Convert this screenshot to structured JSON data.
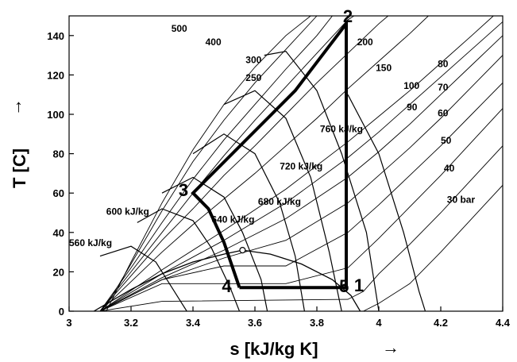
{
  "chart_data": {
    "type": "line",
    "title": "",
    "xlabel": "s [kJ/kg K]",
    "ylabel": "T [C]",
    "xlim": [
      3.0,
      4.4
    ],
    "ylim": [
      0,
      150
    ],
    "x_ticks": [
      3,
      3.2,
      3.4,
      3.6,
      3.8,
      4,
      4.2,
      4.4
    ],
    "x_tick_labels": [
      "3",
      "3.2",
      "3.4",
      "3.6",
      "3.8",
      "4",
      "4.2",
      "4.4"
    ],
    "y_ticks": [
      0,
      20,
      40,
      60,
      80,
      100,
      120,
      140
    ],
    "y_tick_labels": [
      "0",
      "20",
      "40",
      "60",
      "80",
      "100",
      "120",
      "140"
    ],
    "grid": false,
    "arrow_glyph": "→",
    "cycle": {
      "name": "",
      "points": [
        {
          "s": 3.55,
          "T": 12,
          "label": "4"
        },
        {
          "s": 3.88,
          "T": 12,
          "label": "5"
        },
        {
          "s": 3.895,
          "T": 12,
          "label": "1"
        },
        {
          "s": 3.895,
          "T": 146,
          "label": "2"
        },
        {
          "s": 3.73,
          "T": 112,
          "label": ""
        },
        {
          "s": 3.4,
          "T": 60,
          "label": "3"
        },
        {
          "s": 3.45,
          "T": 52,
          "label": ""
        },
        {
          "s": 3.5,
          "T": 35,
          "label": ""
        },
        {
          "s": 3.55,
          "T": 12,
          "label": ""
        }
      ]
    },
    "critical_point": {
      "s": 3.56,
      "T": 31
    },
    "saturation_dome": {
      "liquid": [
        [
          3.08,
          0
        ],
        [
          3.2,
          11
        ],
        [
          3.3,
          19
        ],
        [
          3.4,
          25
        ],
        [
          3.5,
          29
        ],
        [
          3.56,
          31
        ]
      ],
      "vapor": [
        [
          3.56,
          31
        ],
        [
          3.65,
          29
        ],
        [
          3.75,
          24
        ],
        [
          3.85,
          16
        ],
        [
          3.91,
          8
        ],
        [
          3.94,
          0
        ]
      ]
    },
    "isobars": [
      {
        "label": "500",
        "points": [
          [
            3.12,
            0
          ],
          [
            3.2,
            25
          ],
          [
            3.3,
            55
          ],
          [
            3.4,
            82
          ],
          [
            3.5,
            105
          ],
          [
            3.6,
            124
          ],
          [
            3.7,
            140
          ],
          [
            3.78,
            150
          ]
        ]
      },
      {
        "label": "400",
        "points": [
          [
            3.11,
            0
          ],
          [
            3.2,
            24
          ],
          [
            3.3,
            51
          ],
          [
            3.4,
            76
          ],
          [
            3.5,
            97
          ],
          [
            3.6,
            116
          ],
          [
            3.7,
            133
          ],
          [
            3.8,
            150
          ]
        ]
      },
      {
        "label": "300",
        "points": [
          [
            3.1,
            0
          ],
          [
            3.2,
            22
          ],
          [
            3.3,
            45
          ],
          [
            3.4,
            67
          ],
          [
            3.5,
            87
          ],
          [
            3.6,
            105
          ],
          [
            3.7,
            123
          ],
          [
            3.8,
            140
          ],
          [
            3.85,
            150
          ]
        ]
      },
      {
        "label": "250",
        "points": [
          [
            3.1,
            0
          ],
          [
            3.2,
            20
          ],
          [
            3.3,
            40
          ],
          [
            3.4,
            60
          ],
          [
            3.5,
            79
          ],
          [
            3.6,
            97
          ],
          [
            3.7,
            114
          ],
          [
            3.8,
            131
          ],
          [
            3.9,
            148
          ],
          [
            3.92,
            150
          ]
        ]
      },
      {
        "label": "200",
        "points": [
          [
            3.1,
            0
          ],
          [
            3.2,
            18
          ],
          [
            3.3,
            36
          ],
          [
            3.4,
            52
          ],
          [
            3.5,
            69
          ],
          [
            3.6,
            84
          ],
          [
            3.7,
            100
          ],
          [
            3.8,
            116
          ],
          [
            3.9,
            131
          ],
          [
            4.0,
            146
          ],
          [
            4.03,
            150
          ]
        ]
      },
      {
        "label": "150",
        "points": [
          [
            3.1,
            0
          ],
          [
            3.2,
            15
          ],
          [
            3.3,
            30
          ],
          [
            3.4,
            44
          ],
          [
            3.5,
            57
          ],
          [
            3.6,
            70
          ],
          [
            3.7,
            84
          ],
          [
            3.8,
            98
          ],
          [
            3.9,
            113
          ],
          [
            4.0,
            127
          ],
          [
            4.1,
            141
          ],
          [
            4.16,
            150
          ]
        ]
      },
      {
        "label": "100",
        "points": [
          [
            3.1,
            0
          ],
          [
            3.3,
            21
          ],
          [
            3.5,
            41
          ],
          [
            3.7,
            62
          ],
          [
            3.9,
            86
          ],
          [
            4.0,
            99
          ],
          [
            4.1,
            112
          ],
          [
            4.2,
            126
          ],
          [
            4.3,
            140
          ],
          [
            4.37,
            150
          ]
        ]
      },
      {
        "label": "90",
        "points": [
          [
            3.1,
            0
          ],
          [
            3.3,
            19
          ],
          [
            3.5,
            36
          ],
          [
            3.7,
            55
          ],
          [
            3.9,
            78
          ],
          [
            4.0,
            91
          ],
          [
            4.1,
            105
          ],
          [
            4.2,
            119
          ],
          [
            4.3,
            133
          ],
          [
            4.4,
            147
          ]
        ]
      },
      {
        "label": "80",
        "points": [
          [
            3.1,
            0
          ],
          [
            3.3,
            17
          ],
          [
            3.5,
            31
          ],
          [
            3.7,
            47
          ],
          [
            3.9,
            68
          ],
          [
            4.0,
            81
          ],
          [
            4.1,
            95
          ],
          [
            4.2,
            110
          ],
          [
            4.3,
            125
          ],
          [
            4.4,
            140
          ]
        ]
      },
      {
        "label": "70",
        "points": [
          [
            3.1,
            0
          ],
          [
            3.3,
            16
          ],
          [
            3.5,
            27
          ],
          [
            3.7,
            36
          ],
          [
            3.9,
            55
          ],
          [
            4.0,
            69
          ],
          [
            4.1,
            83
          ],
          [
            4.2,
            98
          ],
          [
            4.3,
            114
          ],
          [
            4.4,
            130
          ]
        ]
      },
      {
        "label": "60",
        "points": [
          [
            3.1,
            0
          ],
          [
            3.3,
            16
          ],
          [
            3.5,
            23
          ],
          [
            3.7,
            23
          ],
          [
            3.9,
            40
          ],
          [
            4.0,
            54
          ],
          [
            4.1,
            69
          ],
          [
            4.2,
            84
          ],
          [
            4.3,
            100
          ],
          [
            4.4,
            116
          ]
        ]
      },
      {
        "label": "50",
        "points": [
          [
            3.1,
            0
          ],
          [
            3.3,
            14
          ],
          [
            3.5,
            14
          ],
          [
            3.7,
            14
          ],
          [
            3.9,
            22
          ],
          [
            4.0,
            37
          ],
          [
            4.1,
            53
          ],
          [
            4.2,
            69
          ],
          [
            4.3,
            86
          ],
          [
            4.4,
            103
          ]
        ]
      },
      {
        "label": "40",
        "points": [
          [
            3.1,
            0
          ],
          [
            3.3,
            5
          ],
          [
            3.9,
            6
          ],
          [
            3.95,
            10
          ],
          [
            4.0,
            19
          ],
          [
            4.1,
            34
          ],
          [
            4.2,
            50
          ],
          [
            4.3,
            67
          ],
          [
            4.4,
            84
          ]
        ]
      },
      {
        "label": "30 bar",
        "points": [
          [
            3.95,
            0
          ],
          [
            4.0,
            4
          ],
          [
            4.1,
            14
          ],
          [
            4.2,
            30
          ],
          [
            4.3,
            47
          ],
          [
            4.4,
            64
          ]
        ]
      }
    ],
    "isenthalps": [
      {
        "label": "560 kJ/kg",
        "points": [
          [
            3.1,
            28
          ],
          [
            3.2,
            33
          ],
          [
            3.28,
            25
          ],
          [
            3.34,
            10
          ],
          [
            3.38,
            0
          ]
        ]
      },
      {
        "label": "600 kJ/kg",
        "points": [
          [
            3.22,
            45
          ],
          [
            3.3,
            52
          ],
          [
            3.4,
            46
          ],
          [
            3.46,
            32
          ],
          [
            3.52,
            12
          ],
          [
            3.55,
            0
          ]
        ]
      },
      {
        "label": "640 kJ/kg",
        "points": [
          [
            3.3,
            60
          ],
          [
            3.4,
            68
          ],
          [
            3.5,
            58
          ],
          [
            3.56,
            40
          ],
          [
            3.62,
            16
          ],
          [
            3.64,
            0
          ]
        ]
      },
      {
        "label": "680 kJ/kg",
        "points": [
          [
            3.4,
            80
          ],
          [
            3.5,
            90
          ],
          [
            3.6,
            80
          ],
          [
            3.68,
            55
          ],
          [
            3.73,
            28
          ],
          [
            3.76,
            0
          ]
        ]
      },
      {
        "label": "720 kJ/kg",
        "points": [
          [
            3.5,
            105
          ],
          [
            3.6,
            112
          ],
          [
            3.7,
            98
          ],
          [
            3.78,
            68
          ],
          [
            3.84,
            30
          ],
          [
            3.88,
            0
          ]
        ]
      },
      {
        "label": "760 kJ/kg",
        "points": [
          [
            3.63,
            130
          ],
          [
            3.7,
            132
          ],
          [
            3.8,
            112
          ],
          [
            3.88,
            80
          ],
          [
            3.96,
            40
          ],
          [
            4.0,
            0
          ]
        ]
      },
      {
        "label": "",
        "points": [
          [
            3.9,
            110
          ],
          [
            4.0,
            80
          ],
          [
            4.08,
            40
          ],
          [
            4.13,
            10
          ],
          [
            4.15,
            0
          ]
        ]
      }
    ],
    "isobar_labels": [
      {
        "text": "500",
        "s": 3.33,
        "T": 142
      },
      {
        "text": "400",
        "s": 3.44,
        "T": 135
      },
      {
        "text": "300",
        "s": 3.57,
        "T": 126
      },
      {
        "text": "250",
        "s": 3.57,
        "T": 117
      },
      {
        "text": "200",
        "s": 3.93,
        "T": 135
      },
      {
        "text": "150",
        "s": 3.99,
        "T": 122
      },
      {
        "text": "100",
        "s": 4.08,
        "T": 113
      },
      {
        "text": "90",
        "s": 4.09,
        "T": 102
      },
      {
        "text": "80",
        "s": 4.19,
        "T": 124
      },
      {
        "text": "70",
        "s": 4.19,
        "T": 112
      },
      {
        "text": "60",
        "s": 4.19,
        "T": 99
      },
      {
        "text": "50",
        "s": 4.2,
        "T": 85
      },
      {
        "text": "40",
        "s": 4.21,
        "T": 71
      },
      {
        "text": "30 bar",
        "s": 4.22,
        "T": 55
      }
    ],
    "isenthalp_labels": [
      {
        "text": "560 kJ/kg",
        "s": 3.0,
        "T": 33
      },
      {
        "text": "600 kJ/kg",
        "s": 3.12,
        "T": 49
      },
      {
        "text": "640 kJ/kg",
        "s": 3.46,
        "T": 45
      },
      {
        "text": "680 kJ/kg",
        "s": 3.61,
        "T": 54
      },
      {
        "text": "720 kJ/kg",
        "s": 3.68,
        "T": 72
      },
      {
        "text": "760 kJ/kg",
        "s": 3.81,
        "T": 91
      }
    ]
  }
}
